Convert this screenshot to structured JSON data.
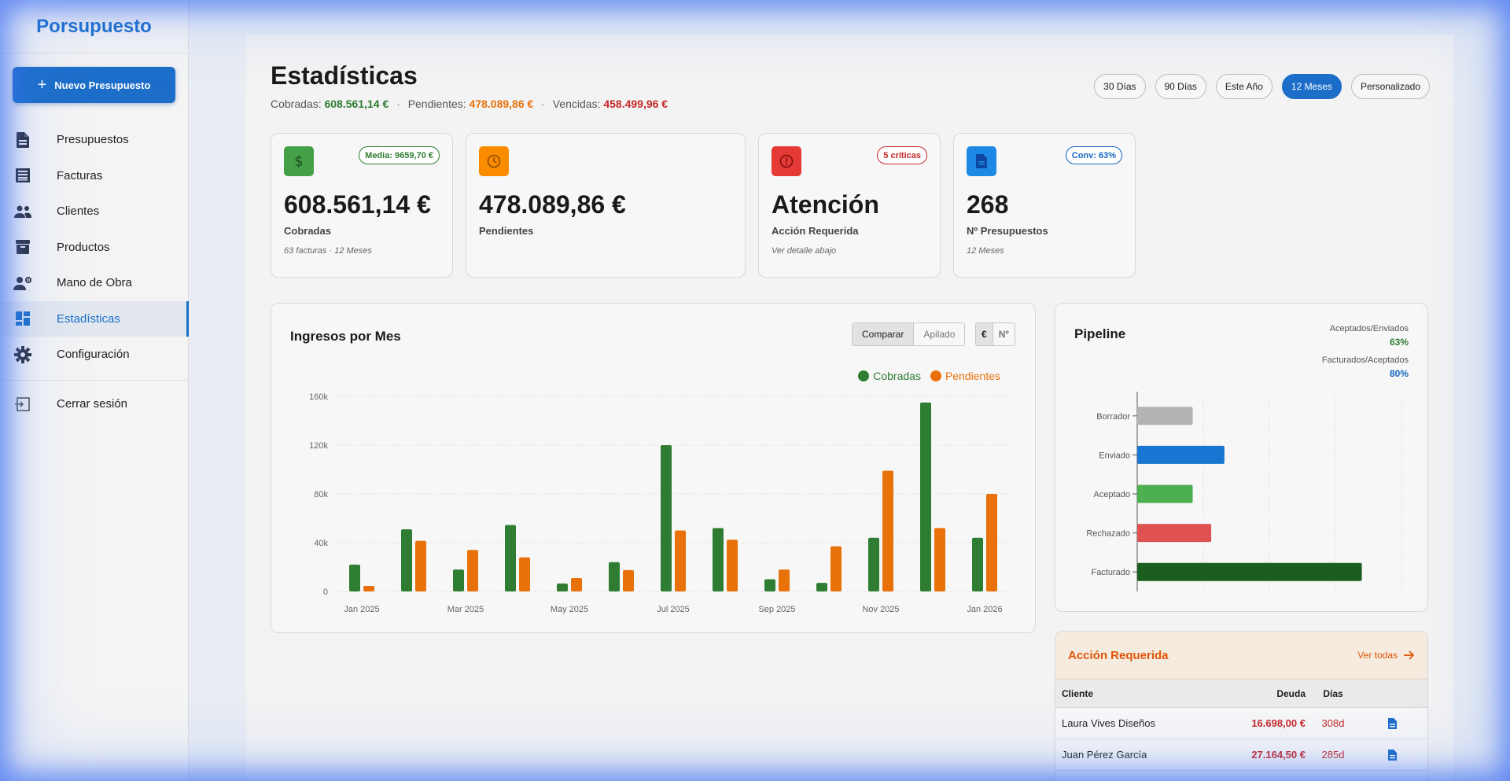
{
  "app": {
    "brand": "Porsupuesto"
  },
  "sidebar": {
    "new_button": "Nuevo Presupuesto",
    "items": [
      {
        "label": "Presupuestos",
        "icon": "document-icon"
      },
      {
        "label": "Facturas",
        "icon": "receipt-icon"
      },
      {
        "label": "Clientes",
        "icon": "people-icon"
      },
      {
        "label": "Productos",
        "icon": "archive-box-icon"
      },
      {
        "label": "Mano de Obra",
        "icon": "worker-gear-icon"
      },
      {
        "label": "Estadísticas",
        "icon": "dashboard-icon",
        "active": true
      },
      {
        "label": "Configuración",
        "icon": "gear-icon"
      }
    ],
    "logout": "Cerrar sesión"
  },
  "header": {
    "title": "Estadísticas",
    "cobradas_label": "Cobradas:",
    "cobradas_value": "608.561,14 €",
    "pendientes_label": "Pendientes:",
    "pendientes_value": "478.089,86 €",
    "vencidas_label": "Vencidas:",
    "vencidas_value": "458.499,96 €",
    "ranges": [
      "30 Días",
      "90 Días",
      "Este Año",
      "12 Meses",
      "Personalizado"
    ],
    "active_range": "12 Meses"
  },
  "cards": [
    {
      "value": "608.561,14 €",
      "label": "Cobradas",
      "note": "63 facturas · 12 Meses",
      "badge": "Media: 9659,70 €",
      "color": "#43a047"
    },
    {
      "value": "478.089,86 €",
      "label": "Pendientes",
      "note": "",
      "badge": "",
      "color": "#fb8c00"
    },
    {
      "value": "Atención",
      "label": "Acción Requerida",
      "note": "Ver detalle abajo",
      "badge": "5 críticas",
      "color": "#e53935"
    },
    {
      "value": "268",
      "label": "Nº Presupuestos",
      "note": "12 Meses",
      "badge": "Conv: 63%",
      "color": "#1e88e5"
    }
  ],
  "income": {
    "title": "Ingresos por Mes",
    "mode_buttons": [
      "Comparar",
      "Apilado"
    ],
    "unit_buttons": [
      "€",
      "Nº"
    ],
    "chart_data": {
      "type": "bar",
      "categories": [
        "Jan 2025",
        "Feb 2025",
        "Mar 2025",
        "Apr 2025",
        "May 2025",
        "Jun 2025",
        "Jul 2025",
        "Aug 2025",
        "Sep 2025",
        "Oct 2025",
        "Nov 2025",
        "Dec 2025",
        "Jan 2026"
      ],
      "tick_labels": [
        "Jan 2025",
        "Mar 2025",
        "May 2025",
        "Jul 2025",
        "Sep 2025",
        "Nov 2025",
        "Jan 2026"
      ],
      "y_ticks": [
        "0",
        "40k",
        "80k",
        "120k",
        "160k"
      ],
      "ylim": [
        0,
        160000
      ],
      "series": [
        {
          "name": "Cobradas",
          "color": "#2e7d32",
          "values": [
            22000,
            51000,
            18000,
            54500,
            6500,
            24000,
            120000,
            52000,
            10000,
            7000,
            44000,
            155000,
            44000
          ]
        },
        {
          "name": "Pendientes",
          "color": "#e8710a",
          "values": [
            4500,
            41500,
            34000,
            28000,
            11000,
            17500,
            50000,
            42500,
            18000,
            37000,
            99000,
            52000,
            80000
          ]
        }
      ],
      "grid": true,
      "legend_position": "top-right"
    }
  },
  "pipeline": {
    "title": "Pipeline",
    "stat1_label": "Aceptados/Enviados",
    "stat1_value": "63%",
    "stat2_label": "Facturados/Aceptados",
    "stat2_value": "80%",
    "chart_data": {
      "type": "bar",
      "orientation": "horizontal",
      "categories": [
        "Borrador",
        "Enviado",
        "Aceptado",
        "Rechazado",
        "Facturado"
      ],
      "values": [
        21,
        33,
        21,
        28,
        85
      ],
      "colors": [
        "#b3b3b3",
        "#1976d2",
        "#4caf50",
        "#e05252",
        "#1b5e20"
      ],
      "xlim": [
        0,
        100
      ],
      "grid": true
    }
  },
  "action": {
    "title": "Acción Requerida",
    "link": "Ver todas",
    "columns": [
      "Cliente",
      "Deuda",
      "Días"
    ],
    "rows": [
      {
        "client": "Laura Vives Diseños",
        "debt": "16.698,00 €",
        "days": "308d"
      },
      {
        "client": "Juan Pérez García",
        "debt": "27.164,50 €",
        "days": "285d"
      }
    ]
  }
}
